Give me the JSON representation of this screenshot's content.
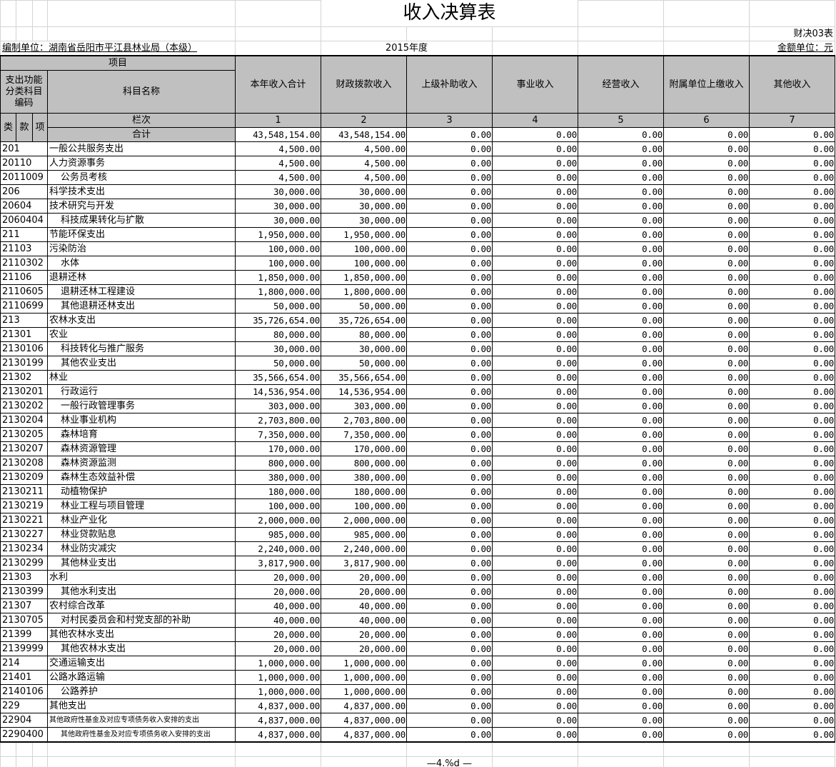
{
  "title": "收入决算表",
  "form_no": "财决03表",
  "unit_label": "编制单位：湖南省岳阳市平江县林业局（本级）",
  "year": "2015年度",
  "amount_unit": "金额单位：元",
  "header": {
    "item": "项目",
    "code": "支出功能分类科目编码",
    "name": "科目名称",
    "lei": "类",
    "kuan": "款",
    "xiang": "项",
    "lanci": "栏次",
    "total": "合计",
    "columns": [
      "本年收入合计",
      "财政拨款收入",
      "上级补助收入",
      "事业收入",
      "经营收入",
      "附属单位上缴收入",
      "其他收入"
    ],
    "column_nos": [
      "1",
      "2",
      "3",
      "4",
      "5",
      "6",
      "7"
    ]
  },
  "total_values": [
    "43,548,154.00",
    "43,548,154.00",
    "0.00",
    "0.00",
    "0.00",
    "0.00",
    "0.00"
  ],
  "rows": [
    {
      "code": "201",
      "name": "一般公共服务支出",
      "a": "4,500.00",
      "b": "4,500.00"
    },
    {
      "code": "20110",
      "name": "人力资源事务",
      "a": "4,500.00",
      "b": "4,500.00"
    },
    {
      "code": "2011009",
      "name": "公务员考核",
      "a": "4,500.00",
      "b": "4,500.00",
      "indent": true
    },
    {
      "code": "206",
      "name": "科学技术支出",
      "a": "30,000.00",
      "b": "30,000.00"
    },
    {
      "code": "20604",
      "name": "技术研究与开发",
      "a": "30,000.00",
      "b": "30,000.00"
    },
    {
      "code": "2060404",
      "name": "科技成果转化与扩散",
      "a": "30,000.00",
      "b": "30,000.00",
      "indent": true
    },
    {
      "code": "211",
      "name": "节能环保支出",
      "a": "1,950,000.00",
      "b": "1,950,000.00"
    },
    {
      "code": "21103",
      "name": "污染防治",
      "a": "100,000.00",
      "b": "100,000.00"
    },
    {
      "code": "2110302",
      "name": "水体",
      "a": "100,000.00",
      "b": "100,000.00",
      "indent": true
    },
    {
      "code": "21106",
      "name": "退耕还林",
      "a": "1,850,000.00",
      "b": "1,850,000.00"
    },
    {
      "code": "2110605",
      "name": "退耕还林工程建设",
      "a": "1,800,000.00",
      "b": "1,800,000.00",
      "indent": true
    },
    {
      "code": "2110699",
      "name": "其他退耕还林支出",
      "a": "50,000.00",
      "b": "50,000.00",
      "indent": true
    },
    {
      "code": "213",
      "name": "农林水支出",
      "a": "35,726,654.00",
      "b": "35,726,654.00"
    },
    {
      "code": "21301",
      "name": "农业",
      "a": "80,000.00",
      "b": "80,000.00"
    },
    {
      "code": "2130106",
      "name": "科技转化与推广服务",
      "a": "30,000.00",
      "b": "30,000.00",
      "indent": true
    },
    {
      "code": "2130199",
      "name": "其他农业支出",
      "a": "50,000.00",
      "b": "50,000.00",
      "indent": true
    },
    {
      "code": "21302",
      "name": "林业",
      "a": "35,566,654.00",
      "b": "35,566,654.00"
    },
    {
      "code": "2130201",
      "name": "行政运行",
      "a": "14,536,954.00",
      "b": "14,536,954.00",
      "indent": true
    },
    {
      "code": "2130202",
      "name": "一般行政管理事务",
      "a": "303,000.00",
      "b": "303,000.00",
      "indent": true
    },
    {
      "code": "2130204",
      "name": "林业事业机构",
      "a": "2,703,800.00",
      "b": "2,703,800.00",
      "indent": true
    },
    {
      "code": "2130205",
      "name": "森林培育",
      "a": "7,350,000.00",
      "b": "7,350,000.00",
      "indent": true
    },
    {
      "code": "2130207",
      "name": "森林资源管理",
      "a": "170,000.00",
      "b": "170,000.00",
      "indent": true
    },
    {
      "code": "2130208",
      "name": "森林资源监测",
      "a": "800,000.00",
      "b": "800,000.00",
      "indent": true
    },
    {
      "code": "2130209",
      "name": "森林生态效益补偿",
      "a": "380,000.00",
      "b": "380,000.00",
      "indent": true
    },
    {
      "code": "2130211",
      "name": "动植物保护",
      "a": "180,000.00",
      "b": "180,000.00",
      "indent": true
    },
    {
      "code": "2130219",
      "name": "林业工程与项目管理",
      "a": "100,000.00",
      "b": "100,000.00",
      "indent": true
    },
    {
      "code": "2130221",
      "name": "林业产业化",
      "a": "2,000,000.00",
      "b": "2,000,000.00",
      "indent": true
    },
    {
      "code": "2130227",
      "name": "林业贷款贴息",
      "a": "985,000.00",
      "b": "985,000.00",
      "indent": true
    },
    {
      "code": "2130234",
      "name": "林业防灾减灾",
      "a": "2,240,000.00",
      "b": "2,240,000.00",
      "indent": true
    },
    {
      "code": "2130299",
      "name": "其他林业支出",
      "a": "3,817,900.00",
      "b": "3,817,900.00",
      "indent": true
    },
    {
      "code": "21303",
      "name": "水利",
      "a": "20,000.00",
      "b": "20,000.00"
    },
    {
      "code": "2130399",
      "name": "其他水利支出",
      "a": "20,000.00",
      "b": "20,000.00",
      "indent": true
    },
    {
      "code": "21307",
      "name": "农村综合改革",
      "a": "40,000.00",
      "b": "40,000.00"
    },
    {
      "code": "2130705",
      "name": "对村民委员会和村党支部的补助",
      "a": "40,000.00",
      "b": "40,000.00",
      "indent": true
    },
    {
      "code": "21399",
      "name": "其他农林水支出",
      "a": "20,000.00",
      "b": "20,000.00"
    },
    {
      "code": "2139999",
      "name": "其他农林水支出",
      "a": "20,000.00",
      "b": "20,000.00",
      "indent": true
    },
    {
      "code": "214",
      "name": "交通运输支出",
      "a": "1,000,000.00",
      "b": "1,000,000.00"
    },
    {
      "code": "21401",
      "name": "公路水路运输",
      "a": "1,000,000.00",
      "b": "1,000,000.00"
    },
    {
      "code": "2140106",
      "name": "公路养护",
      "a": "1,000,000.00",
      "b": "1,000,000.00",
      "indent": true
    },
    {
      "code": "229",
      "name": "其他支出",
      "a": "4,837,000.00",
      "b": "4,837,000.00"
    },
    {
      "code": "22904",
      "name": "其他政府性基金及对应专项债务收入安排的支出",
      "a": "4,837,000.00",
      "b": "4,837,000.00",
      "small": true
    },
    {
      "code": "2290400",
      "name": "其他政府性基金及对应专项债务收入安排的支出",
      "a": "4,837,000.00",
      "b": "4,837,000.00",
      "small": true,
      "indent": true
    }
  ],
  "zero": "0.00",
  "footer": "—4.%d —"
}
